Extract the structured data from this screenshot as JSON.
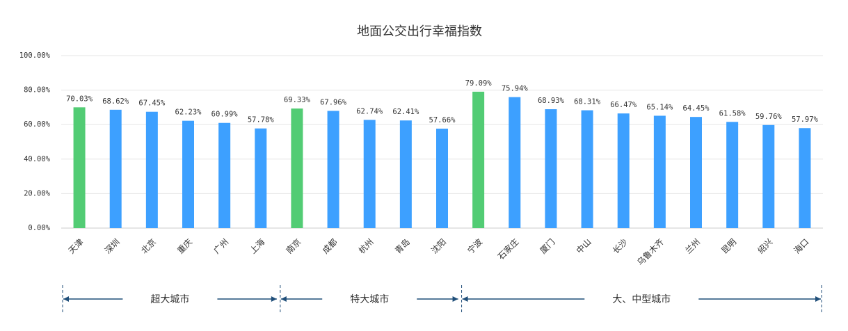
{
  "chart_data": {
    "type": "bar",
    "title": "地面公交出行幸福指数",
    "ylim": [
      0,
      100
    ],
    "yticks": [
      {
        "value": 0,
        "label": "0.00%"
      },
      {
        "value": 20,
        "label": "20.00%"
      },
      {
        "value": 40,
        "label": "40.00%"
      },
      {
        "value": 60,
        "label": "60.00%"
      },
      {
        "value": 80,
        "label": "80.00%"
      },
      {
        "value": 100,
        "label": "100.00%"
      }
    ],
    "grid": true,
    "groups": [
      {
        "label": "超大城市",
        "categories": [
          "天津",
          "深圳",
          "北京",
          "重庆",
          "广州",
          "上海"
        ],
        "values": [
          70.03,
          68.62,
          67.45,
          62.23,
          60.99,
          57.78
        ],
        "value_labels": [
          "70.03%",
          "68.62%",
          "67.45%",
          "62.23%",
          "60.99%",
          "57.78%"
        ],
        "colors": [
          "#52cc74",
          "#3da0ff",
          "#3da0ff",
          "#3da0ff",
          "#3da0ff",
          "#3da0ff"
        ]
      },
      {
        "label": "特大城市",
        "categories": [
          "南京",
          "成都",
          "杭州",
          "青岛",
          "沈阳"
        ],
        "values": [
          69.33,
          67.96,
          62.74,
          62.41,
          57.66
        ],
        "value_labels": [
          "69.33%",
          "67.96%",
          "62.74%",
          "62.41%",
          "57.66%"
        ],
        "colors": [
          "#52cc74",
          "#3da0ff",
          "#3da0ff",
          "#3da0ff",
          "#3da0ff"
        ]
      },
      {
        "label": "大、中型城市",
        "categories": [
          "宁波",
          "石家庄",
          "厦门",
          "中山",
          "长沙",
          "乌鲁木齐",
          "兰州",
          "昆明",
          "绍兴",
          "海口"
        ],
        "values": [
          79.09,
          75.94,
          68.93,
          68.31,
          66.47,
          65.14,
          64.45,
          61.58,
          59.76,
          57.97
        ],
        "value_labels": [
          "79.09%",
          "75.94%",
          "68.93%",
          "68.31%",
          "66.47%",
          "65.14%",
          "64.45%",
          "61.58%",
          "59.76%",
          "57.97%"
        ],
        "colors": [
          "#52cc74",
          "#3da0ff",
          "#3da0ff",
          "#3da0ff",
          "#3da0ff",
          "#3da0ff",
          "#3da0ff",
          "#3da0ff",
          "#3da0ff",
          "#3da0ff"
        ]
      }
    ]
  }
}
